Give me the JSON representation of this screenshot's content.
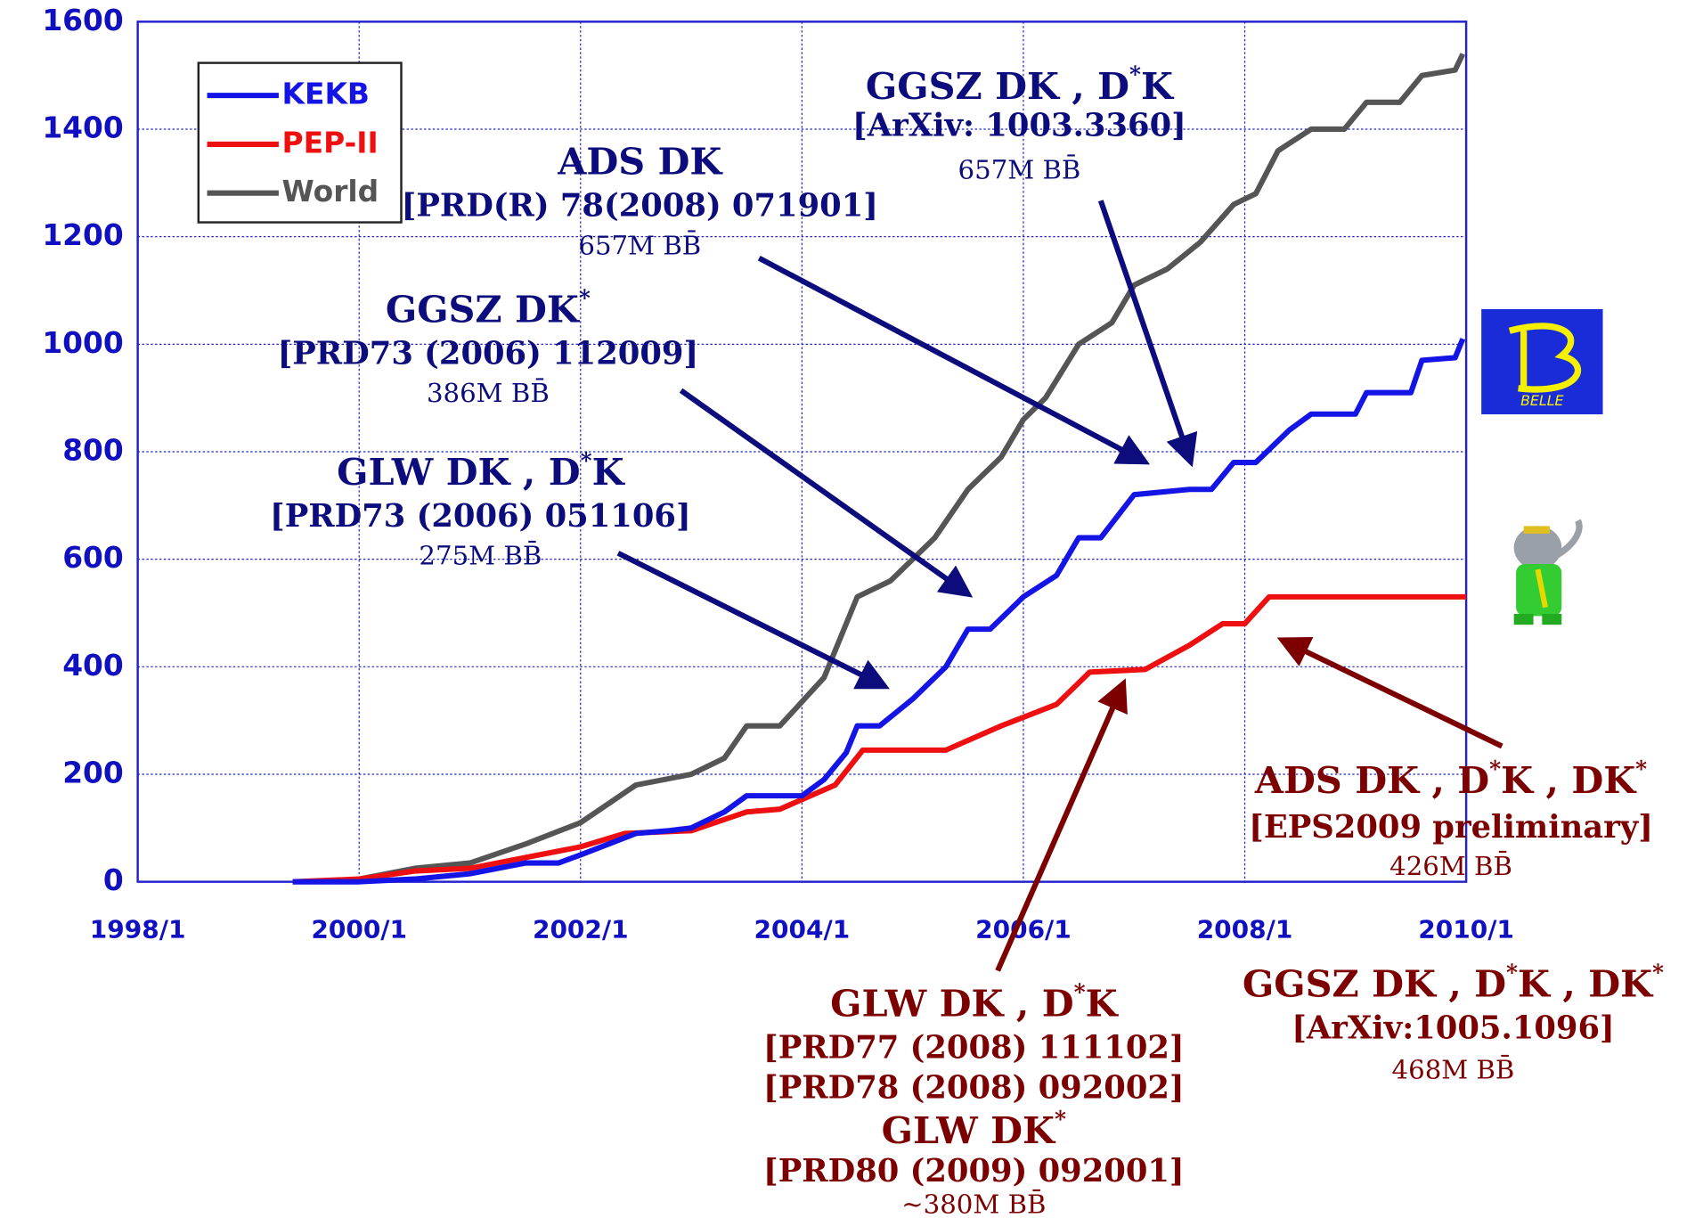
{
  "chart_data": {
    "type": "line",
    "xlim": [
      1998,
      2010
    ],
    "ylim": [
      0,
      1600
    ],
    "xticks": [
      {
        "value": 1998,
        "label": "1998/1"
      },
      {
        "value": 2000,
        "label": "2000/1"
      },
      {
        "value": 2002,
        "label": "2002/1"
      },
      {
        "value": 2004,
        "label": "2004/1"
      },
      {
        "value": 2006,
        "label": "2006/1"
      },
      {
        "value": 2008,
        "label": "2008/1"
      },
      {
        "value": 2010,
        "label": "2010/1"
      }
    ],
    "yticks": [
      0,
      200,
      400,
      600,
      800,
      1000,
      1200,
      1400,
      1600
    ],
    "grid": true,
    "legend": "upper left",
    "series": [
      {
        "name": "KEKB",
        "color": "#1414e6",
        "x": [
          1999.4,
          2000.0,
          2000.5,
          2001.0,
          2001.5,
          2001.8,
          2002.0,
          2002.5,
          2002.8,
          2003.0,
          2003.3,
          2003.5,
          2004.0,
          2004.2,
          2004.4,
          2004.5,
          2004.7,
          2005.0,
          2005.3,
          2005.5,
          2005.7,
          2006.0,
          2006.3,
          2006.5,
          2006.7,
          2007.0,
          2007.5,
          2007.7,
          2007.9,
          2008.1,
          2008.4,
          2008.6,
          2009.0,
          2009.1,
          2009.5,
          2009.6,
          2009.9,
          2009.97
        ],
        "values": [
          0,
          0,
          5,
          15,
          35,
          35,
          50,
          90,
          95,
          100,
          130,
          160,
          160,
          190,
          240,
          290,
          290,
          340,
          400,
          470,
          470,
          530,
          570,
          640,
          640,
          720,
          730,
          730,
          780,
          780,
          840,
          870,
          870,
          910,
          910,
          970,
          975,
          1010
        ]
      },
      {
        "name": "PEP-II",
        "color": "#ee1010",
        "x": [
          1999.4,
          2000.0,
          2000.5,
          2001.0,
          2001.5,
          2002.0,
          2002.4,
          2003.0,
          2003.5,
          2003.8,
          2004.3,
          2004.55,
          2005.3,
          2005.8,
          2006.3,
          2006.6,
          2007.1,
          2007.5,
          2007.8,
          2008.0,
          2008.22,
          2010.0
        ],
        "values": [
          0,
          5,
          20,
          25,
          45,
          65,
          90,
          95,
          130,
          135,
          180,
          245,
          245,
          290,
          330,
          390,
          395,
          440,
          480,
          480,
          530,
          530
        ]
      },
      {
        "name": "World",
        "color": "#555555",
        "x": [
          2000.0,
          2000.5,
          2001.0,
          2001.5,
          2002.0,
          2002.5,
          2003.0,
          2003.3,
          2003.5,
          2003.8,
          2004.2,
          2004.5,
          2004.8,
          2005.2,
          2005.5,
          2005.8,
          2006.0,
          2006.2,
          2006.5,
          2006.8,
          2007.0,
          2007.3,
          2007.6,
          2007.9,
          2008.1,
          2008.3,
          2008.6,
          2008.9,
          2009.1,
          2009.4,
          2009.6,
          2009.9,
          2009.97
        ],
        "values": [
          5,
          25,
          35,
          70,
          110,
          180,
          200,
          230,
          290,
          290,
          380,
          530,
          560,
          640,
          730,
          790,
          860,
          900,
          1000,
          1040,
          1110,
          1140,
          1190,
          1260,
          1280,
          1360,
          1400,
          1400,
          1450,
          1450,
          1500,
          1510,
          1540
        ]
      }
    ],
    "annotations": [
      {
        "color": "#0c0c7c",
        "lines": [
          "GGSZ DK , D*K",
          "[ArXiv: 1003.3360]",
          "657M BB̄"
        ]
      },
      {
        "color": "#0c0c7c",
        "lines": [
          "ADS DK",
          "[PRD(R) 78(2008) 071901]",
          "657M BB̄"
        ]
      },
      {
        "color": "#0c0c7c",
        "lines": [
          "GGSZ DK*",
          "[PRD73 (2006) 112009]",
          "386M BB̄"
        ]
      },
      {
        "color": "#0c0c7c",
        "lines": [
          "GLW DK , D*K",
          "[PRD73 (2006) 051106]",
          "275M BB̄"
        ]
      },
      {
        "color": "#7c0000",
        "lines": [
          "ADS DK , D*K , DK*",
          "[EPS2009 preliminary]",
          "426M BB̄"
        ]
      },
      {
        "color": "#7c0000",
        "lines": [
          "GLW DK , D*K",
          "[PRD77 (2008) 111102]",
          "[PRD78 (2008) 092002]",
          "GLW DK*",
          "[PRD80 (2009) 092001]",
          "~380M BB̄"
        ]
      },
      {
        "color": "#7c0000",
        "lines": [
          "GGSZ DK , D*K , DK*",
          "[ArXiv:1005.1096]",
          "468M BB̄"
        ]
      }
    ]
  },
  "logo_text": "BELLE"
}
